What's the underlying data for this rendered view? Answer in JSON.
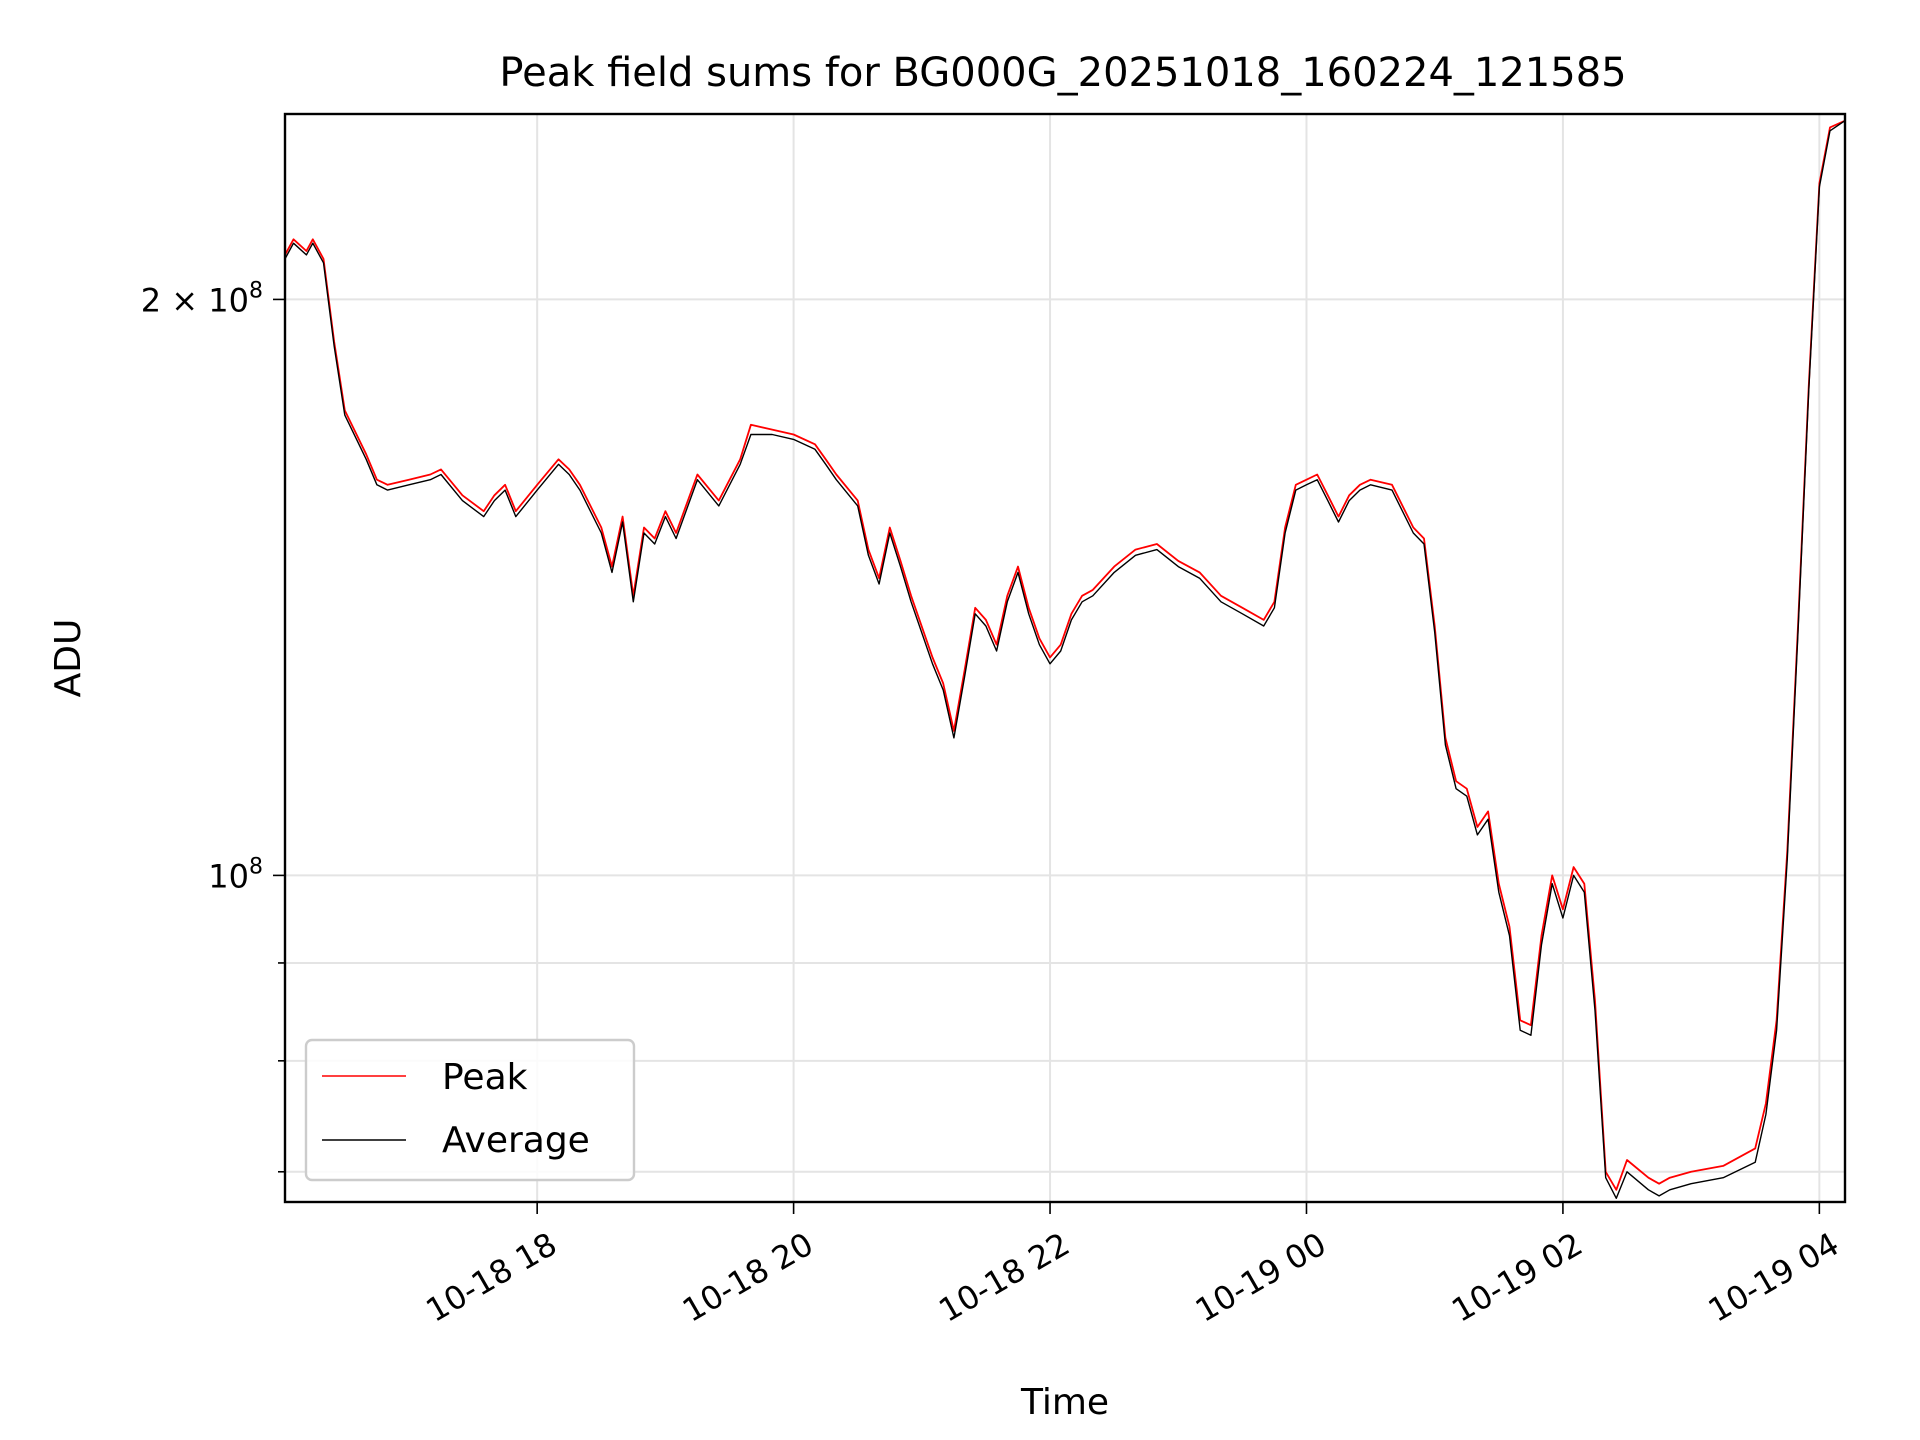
{
  "chart_data": {
    "type": "line",
    "title": "Peak field sums for BG000G_20251018_160224_121585",
    "xlabel": "Time",
    "ylabel": "ADU",
    "y_scale": "log",
    "xlim": [
      "2025-10-18 16:02",
      "2025-10-19 04:12"
    ],
    "ylim": [
      67500000,
      250000000
    ],
    "x_ticks": [
      "10-18 18",
      "10-18 20",
      "10-18 22",
      "10-19 00",
      "10-19 02",
      "10-19 04"
    ],
    "y_ticks": [
      {
        "value": 100000000,
        "mantissa": "",
        "exponent": "8"
      },
      {
        "value": 200000000,
        "mantissa": "2",
        "exponent": "8"
      }
    ],
    "grid": true,
    "legend_position": "lower-left",
    "series": [
      {
        "name": "Peak",
        "color": "#ff0000",
        "x": [
          "2025-10-18 16:02",
          "2025-10-18 16:06",
          "2025-10-18 16:12",
          "2025-10-18 16:15",
          "2025-10-18 16:20",
          "2025-10-18 16:25",
          "2025-10-18 16:30",
          "2025-10-18 16:40",
          "2025-10-18 16:45",
          "2025-10-18 16:50",
          "2025-10-18 17:00",
          "2025-10-18 17:10",
          "2025-10-18 17:15",
          "2025-10-18 17:25",
          "2025-10-18 17:35",
          "2025-10-18 17:40",
          "2025-10-18 17:45",
          "2025-10-18 17:50",
          "2025-10-18 18:00",
          "2025-10-18 18:10",
          "2025-10-18 18:15",
          "2025-10-18 18:20",
          "2025-10-18 18:30",
          "2025-10-18 18:35",
          "2025-10-18 18:40",
          "2025-10-18 18:45",
          "2025-10-18 18:50",
          "2025-10-18 18:55",
          "2025-10-18 19:00",
          "2025-10-18 19:05",
          "2025-10-18 19:15",
          "2025-10-18 19:25",
          "2025-10-18 19:35",
          "2025-10-18 19:40",
          "2025-10-18 19:50",
          "2025-10-18 20:00",
          "2025-10-18 20:10",
          "2025-10-18 20:15",
          "2025-10-18 20:20",
          "2025-10-18 20:30",
          "2025-10-18 20:35",
          "2025-10-18 20:40",
          "2025-10-18 20:45",
          "2025-10-18 20:50",
          "2025-10-18 20:55",
          "2025-10-18 21:05",
          "2025-10-18 21:10",
          "2025-10-18 21:15",
          "2025-10-18 21:20",
          "2025-10-18 21:25",
          "2025-10-18 21:30",
          "2025-10-18 21:35",
          "2025-10-18 21:40",
          "2025-10-18 21:45",
          "2025-10-18 21:50",
          "2025-10-18 21:55",
          "2025-10-18 22:00",
          "2025-10-18 22:05",
          "2025-10-18 22:10",
          "2025-10-18 22:15",
          "2025-10-18 22:20",
          "2025-10-18 22:30",
          "2025-10-18 22:40",
          "2025-10-18 22:50",
          "2025-10-18 23:00",
          "2025-10-18 23:10",
          "2025-10-18 23:20",
          "2025-10-18 23:30",
          "2025-10-18 23:40",
          "2025-10-18 23:45",
          "2025-10-18 23:50",
          "2025-10-18 23:55",
          "2025-10-19 00:00",
          "2025-10-19 00:05",
          "2025-10-19 00:10",
          "2025-10-19 00:15",
          "2025-10-19 00:20",
          "2025-10-19 00:25",
          "2025-10-19 00:30",
          "2025-10-19 00:40",
          "2025-10-19 00:50",
          "2025-10-19 00:55",
          "2025-10-19 01:00",
          "2025-10-19 01:05",
          "2025-10-19 01:10",
          "2025-10-19 01:15",
          "2025-10-19 01:20",
          "2025-10-19 01:25",
          "2025-10-19 01:30",
          "2025-10-19 01:35",
          "2025-10-19 01:40",
          "2025-10-19 01:45",
          "2025-10-19 01:50",
          "2025-10-19 01:55",
          "2025-10-19 02:00",
          "2025-10-19 02:05",
          "2025-10-19 02:10",
          "2025-10-19 02:15",
          "2025-10-19 02:20",
          "2025-10-19 02:25",
          "2025-10-19 02:30",
          "2025-10-19 02:40",
          "2025-10-19 02:45",
          "2025-10-19 02:50",
          "2025-10-19 03:00",
          "2025-10-19 03:15",
          "2025-10-19 03:30",
          "2025-10-19 03:35",
          "2025-10-19 03:40",
          "2025-10-19 03:45",
          "2025-10-19 03:50",
          "2025-10-19 03:55",
          "2025-10-19 04:00",
          "2025-10-19 04:05",
          "2025-10-19 04:12"
        ],
        "y": [
          211000000,
          215000000,
          212000000,
          215000000,
          210000000,
          190000000,
          175000000,
          166000000,
          161000000,
          160000000,
          161000000,
          162000000,
          163000000,
          158000000,
          155000000,
          158000000,
          160000000,
          155000000,
          160000000,
          165000000,
          163000000,
          160000000,
          152000000,
          145000000,
          154000000,
          140000000,
          152000000,
          150000000,
          155000000,
          151000000,
          162000000,
          157000000,
          165000000,
          172000000,
          171000000,
          170000000,
          168000000,
          165000000,
          162000000,
          157000000,
          148000000,
          143000000,
          152000000,
          146000000,
          140000000,
          130000000,
          126000000,
          119000000,
          128000000,
          138000000,
          136000000,
          132000000,
          140000000,
          145000000,
          138000000,
          133000000,
          130000000,
          132000000,
          137000000,
          140000000,
          141000000,
          145000000,
          148000000,
          149000000,
          146000000,
          144000000,
          140000000,
          138000000,
          136000000,
          139000000,
          152000000,
          160000000,
          161000000,
          162000000,
          158000000,
          154000000,
          158000000,
          160000000,
          161000000,
          160000000,
          152000000,
          150000000,
          135000000,
          118000000,
          112000000,
          111000000,
          106000000,
          108000000,
          99000000,
          94000000,
          84000000,
          83500000,
          93000000,
          100000000,
          96000000,
          101000000,
          99000000,
          86000000,
          70000000,
          68500000,
          71000000,
          69500000,
          69000000,
          69500000,
          70000000,
          70500000,
          72000000,
          76000000,
          84000000,
          103000000,
          135000000,
          180000000,
          230000000,
          246000000,
          248000000
        ]
      },
      {
        "name": "Average",
        "color": "#000000",
        "x": [
          "2025-10-18 16:02",
          "2025-10-18 16:06",
          "2025-10-18 16:12",
          "2025-10-18 16:15",
          "2025-10-18 16:20",
          "2025-10-18 16:25",
          "2025-10-18 16:30",
          "2025-10-18 16:40",
          "2025-10-18 16:45",
          "2025-10-18 16:50",
          "2025-10-18 17:00",
          "2025-10-18 17:10",
          "2025-10-18 17:15",
          "2025-10-18 17:25",
          "2025-10-18 17:35",
          "2025-10-18 17:40",
          "2025-10-18 17:45",
          "2025-10-18 17:50",
          "2025-10-18 18:00",
          "2025-10-18 18:10",
          "2025-10-18 18:15",
          "2025-10-18 18:20",
          "2025-10-18 18:30",
          "2025-10-18 18:35",
          "2025-10-18 18:40",
          "2025-10-18 18:45",
          "2025-10-18 18:50",
          "2025-10-18 18:55",
          "2025-10-18 19:00",
          "2025-10-18 19:05",
          "2025-10-18 19:15",
          "2025-10-18 19:25",
          "2025-10-18 19:35",
          "2025-10-18 19:40",
          "2025-10-18 19:50",
          "2025-10-18 20:00",
          "2025-10-18 20:10",
          "2025-10-18 20:15",
          "2025-10-18 20:20",
          "2025-10-18 20:30",
          "2025-10-18 20:35",
          "2025-10-18 20:40",
          "2025-10-18 20:45",
          "2025-10-18 20:50",
          "2025-10-18 20:55",
          "2025-10-18 21:05",
          "2025-10-18 21:10",
          "2025-10-18 21:15",
          "2025-10-18 21:20",
          "2025-10-18 21:25",
          "2025-10-18 21:30",
          "2025-10-18 21:35",
          "2025-10-18 21:40",
          "2025-10-18 21:45",
          "2025-10-18 21:50",
          "2025-10-18 21:55",
          "2025-10-18 22:00",
          "2025-10-18 22:05",
          "2025-10-18 22:10",
          "2025-10-18 22:15",
          "2025-10-18 22:20",
          "2025-10-18 22:30",
          "2025-10-18 22:40",
          "2025-10-18 22:50",
          "2025-10-18 23:00",
          "2025-10-18 23:10",
          "2025-10-18 23:20",
          "2025-10-18 23:30",
          "2025-10-18 23:40",
          "2025-10-18 23:45",
          "2025-10-18 23:50",
          "2025-10-18 23:55",
          "2025-10-19 00:00",
          "2025-10-19 00:05",
          "2025-10-19 00:10",
          "2025-10-19 00:15",
          "2025-10-19 00:20",
          "2025-10-19 00:25",
          "2025-10-19 00:30",
          "2025-10-19 00:40",
          "2025-10-19 00:50",
          "2025-10-19 00:55",
          "2025-10-19 01:00",
          "2025-10-19 01:05",
          "2025-10-19 01:10",
          "2025-10-19 01:15",
          "2025-10-19 01:20",
          "2025-10-19 01:25",
          "2025-10-19 01:30",
          "2025-10-19 01:35",
          "2025-10-19 01:40",
          "2025-10-19 01:45",
          "2025-10-19 01:50",
          "2025-10-19 01:55",
          "2025-10-19 02:00",
          "2025-10-19 02:05",
          "2025-10-19 02:10",
          "2025-10-19 02:15",
          "2025-10-19 02:20",
          "2025-10-19 02:25",
          "2025-10-19 02:30",
          "2025-10-19 02:40",
          "2025-10-19 02:45",
          "2025-10-19 02:50",
          "2025-10-19 03:00",
          "2025-10-19 03:15",
          "2025-10-19 03:30",
          "2025-10-19 03:35",
          "2025-10-19 03:40",
          "2025-10-19 03:45",
          "2025-10-19 03:50",
          "2025-10-19 03:55",
          "2025-10-19 04:00",
          "2025-10-19 04:05",
          "2025-10-19 04:12"
        ],
        "y": [
          210000000,
          214000000,
          211000000,
          214000000,
          209000000,
          189000000,
          174000000,
          165000000,
          160000000,
          159000000,
          160000000,
          161000000,
          162000000,
          157000000,
          154000000,
          157000000,
          159000000,
          154000000,
          159000000,
          164000000,
          162000000,
          159000000,
          151000000,
          144000000,
          153000000,
          139000000,
          151000000,
          149000000,
          154000000,
          150000000,
          161000000,
          156000000,
          164000000,
          170000000,
          170000000,
          169000000,
          167000000,
          164000000,
          161000000,
          156000000,
          147000000,
          142000000,
          151000000,
          145000000,
          139000000,
          129000000,
          125000000,
          118000000,
          127000000,
          137000000,
          135000000,
          131000000,
          139000000,
          144000000,
          137000000,
          132000000,
          129000000,
          131000000,
          136000000,
          139000000,
          140000000,
          144000000,
          147000000,
          148000000,
          145000000,
          143000000,
          139000000,
          137000000,
          135000000,
          138000000,
          151000000,
          159000000,
          160000000,
          161000000,
          157000000,
          153000000,
          157000000,
          159000000,
          160000000,
          159000000,
          151000000,
          149000000,
          134000000,
          117000000,
          111000000,
          110000000,
          105000000,
          107000000,
          98000000,
          93000000,
          83000000,
          82500000,
          92000000,
          99000000,
          95000000,
          100000000,
          98000000,
          85000000,
          69500000,
          67800000,
          70000000,
          68500000,
          68000000,
          68500000,
          69000000,
          69500000,
          70800000,
          75000000,
          83000000,
          102000000,
          134000000,
          179000000,
          229000000,
          245000000,
          248000000
        ]
      }
    ]
  }
}
